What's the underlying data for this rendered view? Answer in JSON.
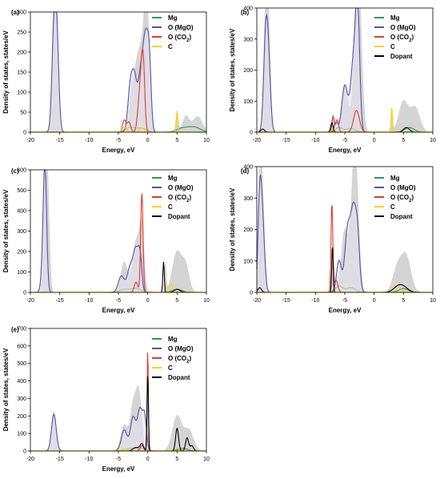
{
  "figure": {
    "series_colors": {
      "total": "#d4d4d4",
      "Mg": "#1e9e5a",
      "O (MgO)": "#5b4fa8",
      "O (CO2)": "#e53b2c",
      "C": "#f2d600",
      "Dopant": "#000000"
    }
  },
  "chart_data": [
    {
      "type": "area",
      "panel_label": "(a)",
      "xlabel": "Energy, eV",
      "ylabel": "Density of states, states/eV",
      "xlim": [
        -20,
        10
      ],
      "ylim": [
        0,
        300
      ],
      "x_ticks": [
        -20,
        -15,
        -10,
        -5,
        0,
        5,
        10
      ],
      "y_ticks": [
        0,
        50,
        100,
        150,
        200,
        250,
        300
      ],
      "legend": [
        "Mg",
        "O (MgO)",
        "O (CO2)",
        "C"
      ],
      "legend_position": "top-right",
      "peaks": {
        "total": [
          [
            -16,
            300,
            0.35
          ],
          [
            -15.5,
            250,
            0.3
          ],
          [
            -2.5,
            120,
            0.6
          ],
          [
            -1.5,
            150,
            0.5
          ],
          [
            -0.5,
            230,
            0.5
          ],
          [
            0,
            190,
            0.4
          ],
          [
            5,
            55,
            0.2
          ],
          [
            6.5,
            40,
            0.6
          ],
          [
            8.5,
            40,
            0.8
          ]
        ],
        "Mg": [
          [
            -3,
            12,
            0.8
          ],
          [
            -1,
            10,
            0.8
          ],
          [
            6,
            10,
            1.0
          ],
          [
            8,
            12,
            1.0
          ]
        ],
        "O (MgO)": [
          [
            -16,
            225,
            0.35
          ],
          [
            -15.5,
            215,
            0.35
          ],
          [
            -3,
            105,
            0.4
          ],
          [
            -2.3,
            120,
            0.4
          ],
          [
            -1.2,
            140,
            0.5
          ],
          [
            -0.3,
            215,
            0.45
          ],
          [
            0.3,
            125,
            0.3
          ]
        ],
        "O (CO2)": [
          [
            -4,
            30,
            0.3
          ],
          [
            -3.2,
            25,
            0.3
          ],
          [
            -1.5,
            60,
            0.3
          ],
          [
            -1,
            135,
            0.3
          ],
          [
            -0.7,
            100,
            0.25
          ]
        ],
        "C": [
          [
            -4,
            12,
            0.4
          ],
          [
            -1,
            10,
            0.4
          ],
          [
            5,
            50,
            0.15
          ]
        ],
        "Dopant": []
      }
    },
    {
      "type": "area",
      "panel_label": "(b)",
      "xlabel": "Energy, eV",
      "ylabel": "Density of states, states/eV",
      "xlim": [
        -20,
        10
      ],
      "ylim": [
        0,
        400
      ],
      "x_ticks": [
        -20,
        -15,
        -10,
        -5,
        0,
        5,
        10
      ],
      "y_ticks": [
        0,
        100,
        200,
        300,
        400
      ],
      "legend": [
        "Mg",
        "O (MgO)",
        "O (CO2)",
        "C",
        "Dopant"
      ],
      "legend_position": "top-right",
      "peaks": {
        "total": [
          [
            -18.5,
            360,
            0.35
          ],
          [
            -18,
            320,
            0.35
          ],
          [
            -7,
            60,
            0.3
          ],
          [
            -5,
            150,
            0.6
          ],
          [
            -3,
            380,
            0.5
          ],
          [
            -2.5,
            300,
            0.5
          ],
          [
            3,
            80,
            0.15
          ],
          [
            5,
            100,
            0.8
          ],
          [
            7,
            80,
            0.8
          ]
        ],
        "Mg": [
          [
            -6,
            15,
            0.6
          ],
          [
            -4,
            12,
            0.8
          ],
          [
            6,
            15,
            0.8
          ]
        ],
        "O (MgO)": [
          [
            -18.5,
            280,
            0.35
          ],
          [
            -18,
            200,
            0.35
          ],
          [
            -6.5,
            30,
            0.3
          ],
          [
            -5,
            150,
            0.5
          ],
          [
            -3.5,
            230,
            0.5
          ],
          [
            -2.8,
            350,
            0.35
          ]
        ],
        "O (CO2)": [
          [
            -7,
            50,
            0.2
          ],
          [
            -6.3,
            40,
            0.25
          ],
          [
            -3,
            70,
            0.5
          ]
        ],
        "C": [
          [
            3,
            80,
            0.12
          ],
          [
            -7,
            8,
            0.3
          ]
        ],
        "Dopant": [
          [
            -7.2,
            30,
            0.2
          ],
          [
            -19,
            10,
            0.3
          ],
          [
            5.5,
            15,
            0.5
          ]
        ]
      }
    },
    {
      "type": "area",
      "panel_label": "(c)",
      "xlabel": "Energy, eV",
      "ylabel": "Density of states, states/eV",
      "xlim": [
        -20,
        10
      ],
      "ylim": [
        0,
        600
      ],
      "x_ticks": [
        -20,
        -15,
        -10,
        -5,
        0,
        5,
        10
      ],
      "y_ticks": [
        0,
        100,
        200,
        300,
        400,
        500,
        600
      ],
      "legend": [
        "Mg",
        "O (MgO)",
        "O (CO2)",
        "C",
        "Dopant"
      ],
      "legend_position": "top-right",
      "peaks": {
        "total": [
          [
            -17.5,
            550,
            0.3
          ],
          [
            -17,
            450,
            0.3
          ],
          [
            -4,
            150,
            0.6
          ],
          [
            -2,
            250,
            0.6
          ],
          [
            -1,
            300,
            0.4
          ],
          [
            3,
            150,
            0.15
          ],
          [
            5,
            200,
            0.8
          ],
          [
            6.5,
            120,
            0.6
          ]
        ],
        "Mg": [
          [
            -4,
            15,
            0.8
          ],
          [
            -2,
            20,
            0.8
          ],
          [
            5,
            15,
            0.8
          ]
        ],
        "O (MgO)": [
          [
            -17.5,
            460,
            0.28
          ],
          [
            -17.7,
            200,
            0.35
          ],
          [
            -4.5,
            80,
            0.5
          ],
          [
            -3,
            120,
            0.5
          ],
          [
            -2,
            200,
            0.45
          ],
          [
            -1.3,
            150,
            0.3
          ]
        ],
        "O (CO2)": [
          [
            -1,
            490,
            0.2
          ],
          [
            -2,
            50,
            0.3
          ]
        ],
        "C": [
          [
            4,
            40,
            0.2
          ]
        ],
        "Dopant": [
          [
            2.7,
            150,
            0.12
          ],
          [
            5,
            15,
            0.5
          ]
        ]
      }
    },
    {
      "type": "area",
      "panel_label": "(d)",
      "xlabel": "Energy, eV",
      "ylabel": "Density of states, states/eV",
      "xlim": [
        -20,
        10
      ],
      "ylim": [
        0,
        400
      ],
      "x_ticks": [
        -20,
        -15,
        -10,
        -5,
        0,
        5,
        10
      ],
      "y_ticks": [
        0,
        100,
        200,
        300,
        400
      ],
      "legend": [
        "Mg",
        "O (MgO)",
        "O (CO2)",
        "C",
        "Dopant"
      ],
      "legend_position": "top-right",
      "peaks": {
        "total": [
          [
            -19.5,
            340,
            0.3
          ],
          [
            -19,
            290,
            0.35
          ],
          [
            -7,
            100,
            0.3
          ],
          [
            -5,
            200,
            0.6
          ],
          [
            -3.5,
            300,
            0.5
          ],
          [
            -3,
            250,
            0.5
          ],
          [
            4,
            80,
            0.8
          ],
          [
            5.5,
            110,
            0.8
          ]
        ],
        "Mg": [
          [
            -6,
            20,
            0.6
          ],
          [
            -4,
            15,
            0.8
          ],
          [
            5,
            12,
            0.8
          ]
        ],
        "O (MgO)": [
          [
            -19.5,
            285,
            0.3
          ],
          [
            -19,
            200,
            0.35
          ],
          [
            -6,
            100,
            0.4
          ],
          [
            -4.5,
            200,
            0.5
          ],
          [
            -3.5,
            240,
            0.45
          ],
          [
            -2.8,
            150,
            0.35
          ]
        ],
        "O (CO2)": [
          [
            -7.2,
            285,
            0.15
          ],
          [
            -6.5,
            40,
            0.3
          ]
        ],
        "C": [
          [
            4,
            20,
            0.5
          ]
        ],
        "Dopant": [
          [
            -7.1,
            150,
            0.12
          ],
          [
            -19.5,
            15,
            0.3
          ],
          [
            4,
            15,
            0.8
          ],
          [
            5,
            15,
            0.8
          ]
        ]
      }
    },
    {
      "type": "area",
      "panel_label": "(e)",
      "xlabel": "Energy, eV",
      "ylabel": "Density of states, states/eV",
      "xlim": [
        -20,
        10
      ],
      "ylim": [
        0,
        700
      ],
      "x_ticks": [
        -20,
        -15,
        -10,
        -5,
        0,
        5,
        10
      ],
      "y_ticks": [
        0,
        100,
        200,
        300,
        400,
        500,
        600,
        700
      ],
      "legend": [
        "Mg",
        "O (MgO)",
        "O (CO2)",
        "C",
        "Dopant"
      ],
      "legend_position": "top-right",
      "peaks": {
        "total": [
          [
            -16,
            230,
            0.4
          ],
          [
            -4,
            150,
            0.6
          ],
          [
            -2.5,
            250,
            0.5
          ],
          [
            -1.5,
            330,
            0.5
          ],
          [
            0,
            590,
            0.15
          ],
          [
            5,
            200,
            0.8
          ],
          [
            7,
            120,
            0.8
          ]
        ],
        "Mg": [
          [
            -3,
            15,
            0.8
          ],
          [
            -1,
            15,
            0.8
          ],
          [
            6,
            15,
            0.8
          ]
        ],
        "O (MgO)": [
          [
            -16,
            210,
            0.4
          ],
          [
            -4,
            120,
            0.5
          ],
          [
            -2.5,
            190,
            0.45
          ],
          [
            -1.3,
            240,
            0.45
          ],
          [
            -0.5,
            170,
            0.3
          ]
        ],
        "O (CO2)": [
          [
            0,
            590,
            0.1
          ],
          [
            -1,
            30,
            0.3
          ]
        ],
        "C": [
          [
            -4,
            10,
            0.5
          ],
          [
            5,
            15,
            0.5
          ]
        ],
        "Dopant": [
          [
            -2,
            20,
            0.5
          ],
          [
            -1,
            40,
            0.3
          ],
          [
            0,
            440,
            0.12
          ],
          [
            5,
            130,
            0.25
          ],
          [
            6.7,
            75,
            0.25
          ],
          [
            7.5,
            30,
            0.3
          ]
        ]
      }
    }
  ]
}
